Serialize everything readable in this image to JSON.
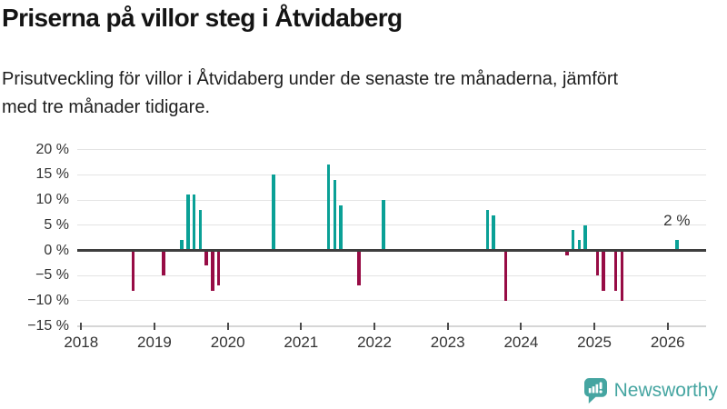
{
  "chart_data": {
    "type": "bar",
    "title": "Priserna på villor steg i Åtvidaberg",
    "subtitle": "Prisutveckling för villor i Åtvidaberg under de senaste tre månaderna, jämfört med tre månader tidigare.",
    "unit": "%",
    "xlabel": "",
    "ylabel": "",
    "ylim": [
      -15,
      20
    ],
    "grid": true,
    "legend": "none",
    "x_ticks": [
      "2018",
      "2019",
      "2020",
      "2021",
      "2022",
      "2023",
      "2024",
      "2025",
      "2026"
    ],
    "y_ticks": [
      20,
      15,
      10,
      5,
      0,
      -5,
      -10,
      -15
    ],
    "y_tick_labels": [
      "20 %",
      "15 %",
      "10 %",
      "5 %",
      "0 %",
      "−5 %",
      "−10 %",
      "−15 %"
    ],
    "points": [
      {
        "month": "2018-09",
        "value": -8
      },
      {
        "month": "2019-02",
        "value": -5
      },
      {
        "month": "2019-05",
        "value": 2
      },
      {
        "month": "2019-06",
        "value": 11
      },
      {
        "month": "2019-07",
        "value": 11
      },
      {
        "month": "2019-08",
        "value": 8
      },
      {
        "month": "2019-09",
        "value": -3
      },
      {
        "month": "2019-10",
        "value": -8
      },
      {
        "month": "2019-11",
        "value": -7
      },
      {
        "month": "2020-08",
        "value": 15
      },
      {
        "month": "2021-05",
        "value": 17
      },
      {
        "month": "2021-06",
        "value": 14
      },
      {
        "month": "2021-07",
        "value": 9
      },
      {
        "month": "2021-10",
        "value": -7
      },
      {
        "month": "2022-02",
        "value": 10
      },
      {
        "month": "2023-07",
        "value": 8
      },
      {
        "month": "2023-08",
        "value": 7
      },
      {
        "month": "2023-10",
        "value": -10
      },
      {
        "month": "2024-08",
        "value": -1
      },
      {
        "month": "2024-09",
        "value": 4
      },
      {
        "month": "2024-10",
        "value": 2
      },
      {
        "month": "2024-11",
        "value": 5
      },
      {
        "month": "2025-01",
        "value": -5
      },
      {
        "month": "2025-02",
        "value": -8
      },
      {
        "month": "2025-04",
        "value": -8
      },
      {
        "month": "2025-05",
        "value": -10
      },
      {
        "month": "2026-02",
        "value": 2
      }
    ],
    "annotation": {
      "text": "2 %",
      "month": "2026-02",
      "value": 2
    },
    "colors": {
      "positive": "#0aa096",
      "negative": "#970c45",
      "zero_line": "#3e3e3e",
      "grid": "#e4e4e4",
      "axis_line": "#d6d6d6",
      "axis_text": "#333333"
    }
  },
  "footer": {
    "brand": "Newsworthy",
    "brand_color": "#45a5a1"
  }
}
